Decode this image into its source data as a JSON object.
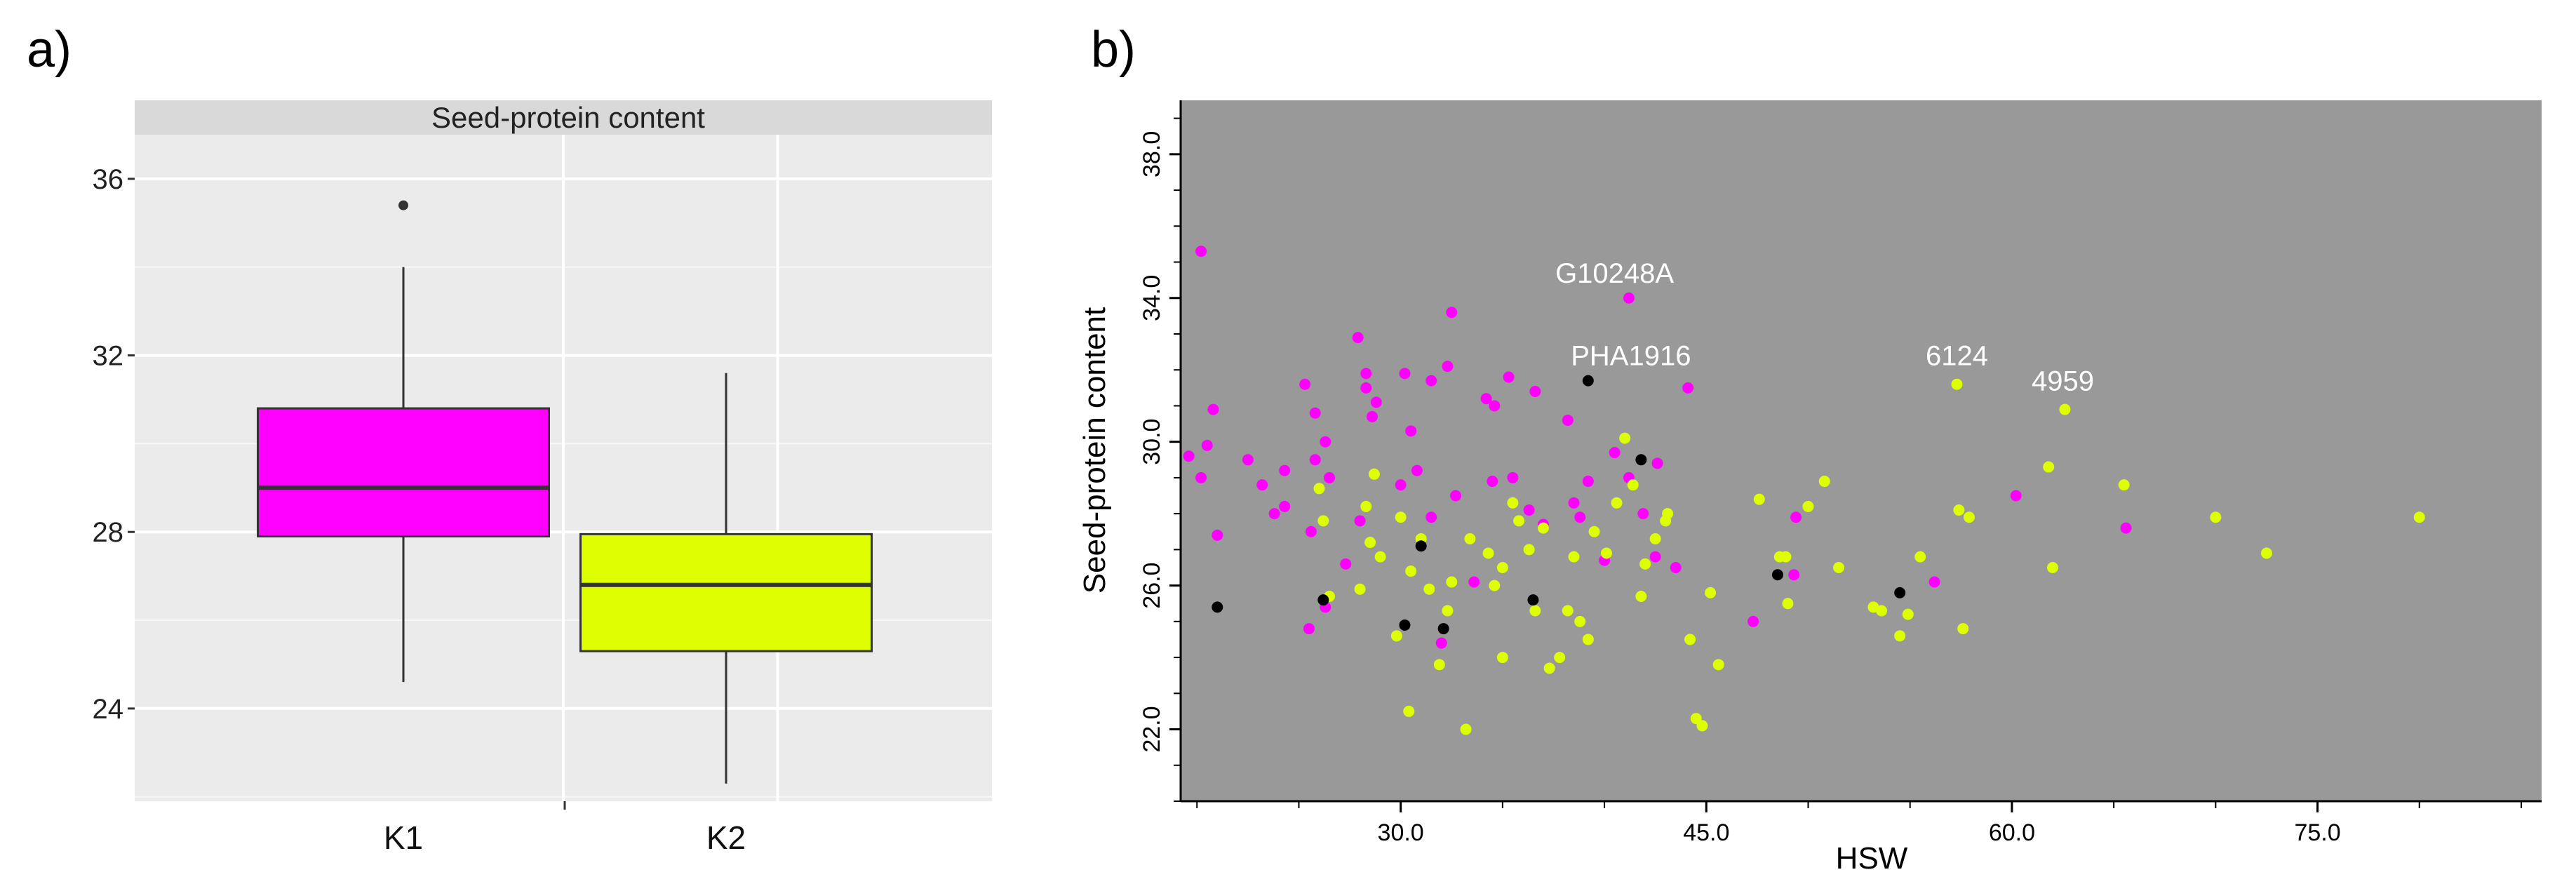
{
  "panel_labels": {
    "a": "a)",
    "b": "b)"
  },
  "colors": {
    "k1": "#ff00ff",
    "k2": "#ddff00",
    "black": "#000000",
    "panel_a_bg": "#ebebeb",
    "panel_a_strip": "#d9d9d9",
    "panel_b_bg": "#999999",
    "annot": "#ffffff"
  },
  "chart_data": [
    {
      "type": "box",
      "title": "Seed-protein content",
      "xlabel": "",
      "ylabel": "",
      "categories": [
        "K1",
        "K2"
      ],
      "y_ticks": [
        24,
        28,
        32,
        36
      ],
      "ylim": [
        21.9,
        37.0
      ],
      "boxes": [
        {
          "name": "K1",
          "whisker_low": 24.6,
          "q1": 27.9,
          "median": 29.0,
          "q3": 30.8,
          "whisker_high": 34.0,
          "outliers": [
            35.4
          ],
          "color": "#ff00ff"
        },
        {
          "name": "K2",
          "whisker_low": 22.3,
          "q1": 25.3,
          "median": 26.8,
          "q3": 27.95,
          "whisker_high": 31.6,
          "outliers": [],
          "color": "#ddff00"
        }
      ],
      "grid": true
    },
    {
      "type": "scatter",
      "xlabel": "HSW",
      "ylabel": "Seed-protein content",
      "x_ticks": [
        30.0,
        45.0,
        60.0,
        75.0
      ],
      "x_tick_labels": [
        "30.0",
        "45.0",
        "60.0",
        "75.0"
      ],
      "y_ticks": [
        22.0,
        26.0,
        30.0,
        34.0,
        38.0
      ],
      "y_tick_labels": [
        "22.0",
        "26.0",
        "30.0",
        "34.0",
        "38.0"
      ],
      "xlim": [
        19.2,
        86.0
      ],
      "ylim": [
        20.0,
        39.5
      ],
      "series": [
        {
          "name": "K1",
          "color": "#ff00ff",
          "points": [
            [
              20.2,
              35.3
            ],
            [
              20.8,
              30.9
            ],
            [
              22.5,
              29.5
            ],
            [
              24.3,
              29.2
            ],
            [
              26.5,
              29.0
            ],
            [
              25.3,
              31.6
            ],
            [
              25.8,
              30.8
            ],
            [
              25.8,
              29.5
            ],
            [
              23.2,
              28.8
            ],
            [
              23.8,
              28.0
            ],
            [
              24.3,
              28.2
            ],
            [
              21.0,
              27.4
            ],
            [
              20.5,
              29.9
            ],
            [
              19.6,
              29.6
            ],
            [
              20.2,
              29.0
            ],
            [
              25.6,
              27.5
            ],
            [
              27.3,
              26.6
            ],
            [
              28.0,
              27.8
            ],
            [
              26.3,
              30.0
            ],
            [
              27.9,
              32.9
            ],
            [
              28.3,
              31.9
            ],
            [
              28.3,
              31.5
            ],
            [
              28.8,
              31.1
            ],
            [
              28.6,
              30.7
            ],
            [
              30.2,
              31.9
            ],
            [
              30.5,
              30.3
            ],
            [
              30.8,
              29.2
            ],
            [
              31.5,
              27.9
            ],
            [
              31.5,
              31.7
            ],
            [
              32.3,
              32.1
            ],
            [
              32.5,
              33.6
            ],
            [
              32.7,
              28.5
            ],
            [
              30.0,
              28.8
            ],
            [
              33.6,
              26.1
            ],
            [
              34.2,
              31.2
            ],
            [
              34.6,
              31.0
            ],
            [
              35.3,
              31.8
            ],
            [
              35.5,
              29.0
            ],
            [
              36.6,
              31.4
            ],
            [
              36.3,
              28.1
            ],
            [
              37.0,
              27.7
            ],
            [
              38.2,
              30.6
            ],
            [
              38.5,
              28.3
            ],
            [
              39.2,
              28.9
            ],
            [
              40.5,
              29.7
            ],
            [
              41.2,
              29.0
            ],
            [
              41.9,
              28.0
            ],
            [
              42.5,
              26.8
            ],
            [
              43.5,
              26.5
            ],
            [
              44.1,
              31.5
            ],
            [
              41.2,
              34.0
            ],
            [
              42.6,
              29.4
            ],
            [
              38.8,
              27.9
            ],
            [
              40.0,
              26.7
            ],
            [
              47.3,
              25.0
            ],
            [
              49.4,
              27.9
            ],
            [
              49.3,
              26.3
            ],
            [
              56.2,
              26.1
            ],
            [
              60.2,
              28.5
            ],
            [
              65.6,
              27.6
            ],
            [
              26.3,
              25.4
            ],
            [
              25.5,
              24.8
            ],
            [
              32.0,
              24.4
            ],
            [
              34.5,
              28.9
            ]
          ]
        },
        {
          "name": "K2",
          "color": "#ddff00",
          "points": [
            [
              26.0,
              28.7
            ],
            [
              26.2,
              27.8
            ],
            [
              26.5,
              25.7
            ],
            [
              28.3,
              28.2
            ],
            [
              28.7,
              29.1
            ],
            [
              29.0,
              26.8
            ],
            [
              28.0,
              25.9
            ],
            [
              28.5,
              27.2
            ],
            [
              29.8,
              24.6
            ],
            [
              30.0,
              27.9
            ],
            [
              30.5,
              26.4
            ],
            [
              30.4,
              22.5
            ],
            [
              31.0,
              27.3
            ],
            [
              31.4,
              25.9
            ],
            [
              31.9,
              23.8
            ],
            [
              32.3,
              25.3
            ],
            [
              32.5,
              26.1
            ],
            [
              33.2,
              22.0
            ],
            [
              33.4,
              27.3
            ],
            [
              34.3,
              26.9
            ],
            [
              34.6,
              26.0
            ],
            [
              35.0,
              24.0
            ],
            [
              35.5,
              28.3
            ],
            [
              35.8,
              27.8
            ],
            [
              36.3,
              27.0
            ],
            [
              36.6,
              25.3
            ],
            [
              37.0,
              27.6
            ],
            [
              37.3,
              23.7
            ],
            [
              38.2,
              25.3
            ],
            [
              38.5,
              26.8
            ],
            [
              38.8,
              25.0
            ],
            [
              39.2,
              24.5
            ],
            [
              39.5,
              27.5
            ],
            [
              40.1,
              26.9
            ],
            [
              40.6,
              28.3
            ],
            [
              41.0,
              30.1
            ],
            [
              41.4,
              28.8
            ],
            [
              42.0,
              26.6
            ],
            [
              42.5,
              27.3
            ],
            [
              43.0,
              27.8
            ],
            [
              43.1,
              28.0
            ],
            [
              44.2,
              24.5
            ],
            [
              44.5,
              22.3
            ],
            [
              44.8,
              22.1
            ],
            [
              45.2,
              25.8
            ],
            [
              45.6,
              23.8
            ],
            [
              47.6,
              28.4
            ],
            [
              48.6,
              26.8
            ],
            [
              48.9,
              26.8
            ],
            [
              49.0,
              25.5
            ],
            [
              50.0,
              28.2
            ],
            [
              50.8,
              28.9
            ],
            [
              51.5,
              26.5
            ],
            [
              53.2,
              25.4
            ],
            [
              53.6,
              25.3
            ],
            [
              54.5,
              24.6
            ],
            [
              54.9,
              25.2
            ],
            [
              55.5,
              26.8
            ],
            [
              57.3,
              31.6
            ],
            [
              57.4,
              28.1
            ],
            [
              57.9,
              27.9
            ],
            [
              57.6,
              24.8
            ],
            [
              61.8,
              29.3
            ],
            [
              62.0,
              26.5
            ],
            [
              62.6,
              30.9
            ],
            [
              65.5,
              28.8
            ],
            [
              70.0,
              27.9
            ],
            [
              72.5,
              26.9
            ],
            [
              80.0,
              27.9
            ],
            [
              37.8,
              24.0
            ],
            [
              35.0,
              26.5
            ],
            [
              41.8,
              25.7
            ]
          ]
        },
        {
          "name": "other",
          "color": "#000000",
          "points": [
            [
              21.0,
              25.4
            ],
            [
              26.2,
              25.6
            ],
            [
              30.2,
              24.9
            ],
            [
              31.0,
              27.1
            ],
            [
              32.1,
              24.8
            ],
            [
              36.5,
              25.6
            ],
            [
              39.2,
              31.7
            ],
            [
              41.8,
              29.5
            ],
            [
              48.5,
              26.3
            ],
            [
              54.5,
              25.8
            ]
          ]
        }
      ],
      "annotations": [
        {
          "text": "G10248A",
          "x": 40.5,
          "y": 34.0
        },
        {
          "text": "PHA1916",
          "x": 41.3,
          "y": 31.7
        },
        {
          "text": "6124",
          "x": 57.3,
          "y": 31.7
        },
        {
          "text": "4959",
          "x": 62.5,
          "y": 31.0
        }
      ]
    }
  ]
}
